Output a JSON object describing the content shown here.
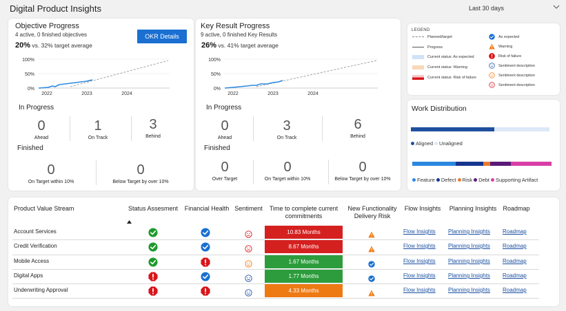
{
  "page_title": "Digital Product Insights",
  "date_range": {
    "selected": "Last 30 days"
  },
  "objective": {
    "title": "Objective Progress",
    "subtitle": "4 active, 0 finished objectives",
    "pct": "20%",
    "vs": "vs. 32% target average",
    "button": "OKR Details",
    "y_ticks": [
      "100%",
      "50%",
      "0%"
    ],
    "x_ticks": [
      "2022",
      "2023",
      "2024"
    ],
    "in_progress_label": "In Progress",
    "finished_label": "Finished",
    "in_progress": [
      {
        "value": "0",
        "label": "Ahead"
      },
      {
        "value": "1",
        "label": "On Track"
      },
      {
        "value": "3",
        "label": "Behind"
      }
    ],
    "finished": [
      {
        "value": "0",
        "label": "On Target within 10%"
      },
      {
        "value": "0",
        "label": "Below Target by over 10%"
      }
    ]
  },
  "key_result": {
    "title": "Key Result Progress",
    "subtitle": "9 active, 0 finished Key Results",
    "pct": "26%",
    "vs": "vs. 41% target average",
    "y_ticks": [
      "100%",
      "50%",
      "0%"
    ],
    "x_ticks": [
      "2022",
      "2023",
      "2024"
    ],
    "in_progress_label": "In Progress",
    "finished_label": "Finished",
    "in_progress": [
      {
        "value": "0",
        "label": "Ahead"
      },
      {
        "value": "3",
        "label": "On Track"
      },
      {
        "value": "6",
        "label": "Behind"
      }
    ],
    "finished": [
      {
        "value": "0",
        "label": "Over Target"
      },
      {
        "value": "0",
        "label": "On Target within 10%"
      },
      {
        "value": "0",
        "label": "Below Target by over 10%"
      }
    ]
  },
  "legend": {
    "title": "LEGEND",
    "left": [
      {
        "label": "Planned/target",
        "kind": "dashed"
      },
      {
        "label": "Progress",
        "kind": "line"
      },
      {
        "label": "Current status: As expected",
        "color": "#cfe2f7"
      },
      {
        "label": "Current status: Warning",
        "color": "#f7d9b8"
      },
      {
        "label": "Current status: Risk of failure",
        "kind": "risk"
      }
    ],
    "right": [
      {
        "label": "As expected",
        "icon": "check-blue"
      },
      {
        "label": "Warning",
        "icon": "warning"
      },
      {
        "label": "Risk of failure",
        "icon": "risk"
      },
      {
        "label": "Sentiment description",
        "icon": "smile-blue"
      },
      {
        "label": "Sentiment description",
        "icon": "smile-orange"
      },
      {
        "label": "Sentiment description",
        "icon": "frown-red"
      }
    ]
  },
  "work_distribution": {
    "title": "Work Distribution",
    "aligned": {
      "labels": [
        "Aligned",
        "Unaligned"
      ],
      "values": [
        0.6,
        0.4
      ],
      "colors": [
        "#1f4f9e",
        "#dce8f6"
      ]
    },
    "types": {
      "labels": [
        "Feature",
        "Defect",
        "Risk",
        "Debt",
        "Supporting Artifact"
      ],
      "values": [
        0.31,
        0.2,
        0.05,
        0.15,
        0.29
      ],
      "colors": [
        "#2b88e0",
        "#17358f",
        "#ea7c2e",
        "#5a1a78",
        "#d93fa6"
      ]
    }
  },
  "table": {
    "headers": {
      "stream": "Product Value Stream",
      "status": "Status Assesment",
      "financial": "Financial Health",
      "sentiment": "Sentiment",
      "time": "Time to complete current commitments",
      "delivery": "New Functionality Delivery Risk",
      "flow": "Flow Insights",
      "planning": "Planning Insights",
      "roadmap": "Roadmap"
    },
    "rows": [
      {
        "name": "Account Services",
        "status": "check-green",
        "financial": "check-blue",
        "sentiment": "frown-red",
        "time": "10.83 Months",
        "time_color": "#d52020",
        "delivery": "warning",
        "flow": "Flow Insights",
        "planning": "Planning Insights",
        "roadmap": "Roadmap"
      },
      {
        "name": "Credit Verification",
        "status": "check-green",
        "financial": "check-blue",
        "sentiment": "frown-red",
        "time": "8.67 Months",
        "time_color": "#d52020",
        "delivery": "warning",
        "flow": "Flow Insights",
        "planning": "Planning Insights",
        "roadmap": "Roadmap"
      },
      {
        "name": "Mobile Access",
        "status": "check-green",
        "financial": "risk",
        "sentiment": "smile-orange",
        "time": "1.67 Months",
        "time_color": "#2d9c3c",
        "delivery": "check-blue",
        "flow": "Flow Insights",
        "planning": "Planning Insights",
        "roadmap": "Roadmap"
      },
      {
        "name": "Digital Apps",
        "status": "risk",
        "financial": "check-blue",
        "sentiment": "smile-blue",
        "time": "1.77 Months",
        "time_color": "#2d9c3c",
        "delivery": "check-blue",
        "flow": "Flow Insights",
        "planning": "Planning Insights",
        "roadmap": "Roadmap"
      },
      {
        "name": "Underwriting Approval",
        "status": "risk",
        "financial": "risk",
        "sentiment": "smile-blue",
        "time": "4.33 Months",
        "time_color": "#ee7a14",
        "delivery": "warning",
        "flow": "Flow Insights",
        "planning": "Planning Insights",
        "roadmap": "Roadmap"
      }
    ]
  }
}
